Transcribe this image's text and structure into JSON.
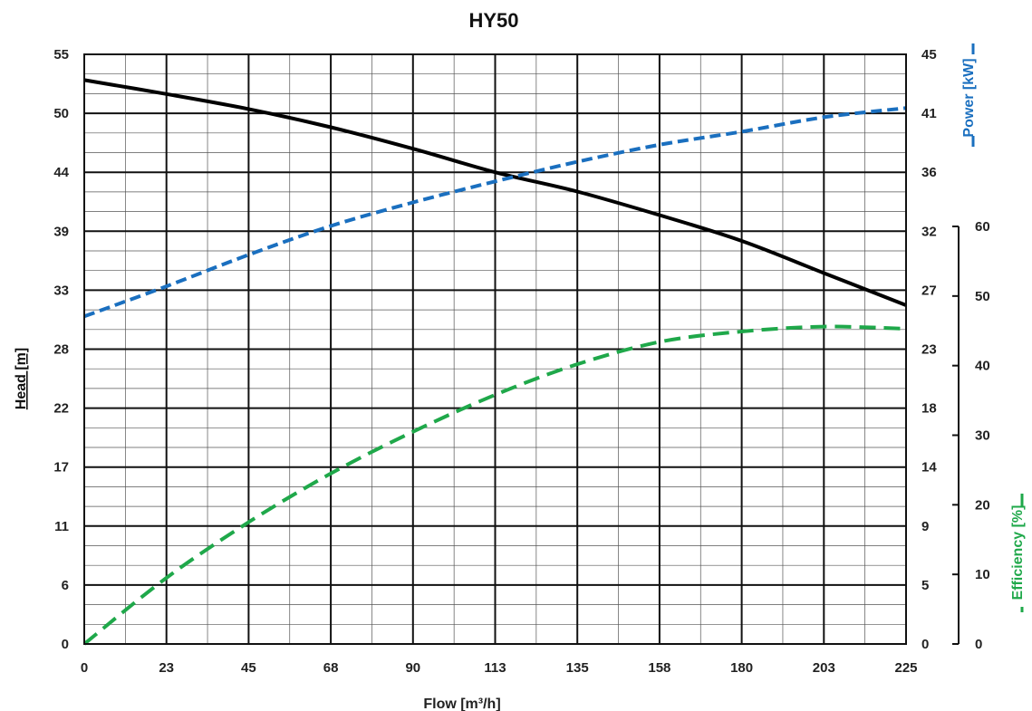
{
  "chart_data": {
    "type": "line",
    "title": "HY50",
    "xlabel": "Flow [m³/h]",
    "ylabel_head": "Head [m]",
    "ylabel_power": "Power [kW]",
    "ylabel_efficiency": "Efficiency [%]",
    "xlim": [
      0,
      225
    ],
    "x_ticks": [
      "0",
      "23",
      "45",
      "68",
      "90",
      "113",
      "135",
      "158",
      "180",
      "203",
      "225"
    ],
    "head_ticks": [
      "0",
      "6",
      "11",
      "17",
      "22",
      "28",
      "33",
      "39",
      "44",
      "50",
      "55"
    ],
    "power_ticks": [
      "0",
      "5",
      "9",
      "14",
      "18",
      "23",
      "27",
      "32",
      "36",
      "41",
      "45"
    ],
    "efficiency_ticks": [
      "0",
      "10",
      "20",
      "30",
      "40",
      "50",
      "60"
    ],
    "head_lim": [
      0,
      55
    ],
    "power_lim": [
      0,
      45
    ],
    "efficiency_lim": [
      0,
      60
    ],
    "grid": true,
    "series": [
      {
        "name": "Head [m]",
        "axis": "head",
        "color": "#000000",
        "style": "solid",
        "x": [
          0,
          22.5,
          45,
          67.5,
          90,
          112.5,
          135,
          157.5,
          180,
          202.5,
          225
        ],
        "y": [
          52.6,
          51.3,
          49.9,
          48.2,
          46.2,
          44.0,
          42.2,
          40.0,
          37.6,
          34.6,
          31.6
        ]
      },
      {
        "name": "Power [kW]",
        "axis": "power",
        "color": "#1a6fbf",
        "style": "dashed",
        "x": [
          0,
          22.5,
          45,
          67.5,
          90,
          112.5,
          135,
          157.5,
          180,
          202.5,
          225
        ],
        "y": [
          25.0,
          27.3,
          29.7,
          31.9,
          33.7,
          35.3,
          36.8,
          38.1,
          39.1,
          40.2,
          40.9
        ]
      },
      {
        "name": "Efficiency [%]",
        "axis": "efficiency",
        "color": "#1fa84a",
        "style": "dashed",
        "x": [
          0,
          22.5,
          45,
          67.5,
          90,
          112.5,
          135,
          157.5,
          180,
          202.5,
          225
        ],
        "y": [
          0,
          9.5,
          17.5,
          24.5,
          30.5,
          35.8,
          40.2,
          43.4,
          44.9,
          45.6,
          45.3
        ]
      }
    ]
  }
}
